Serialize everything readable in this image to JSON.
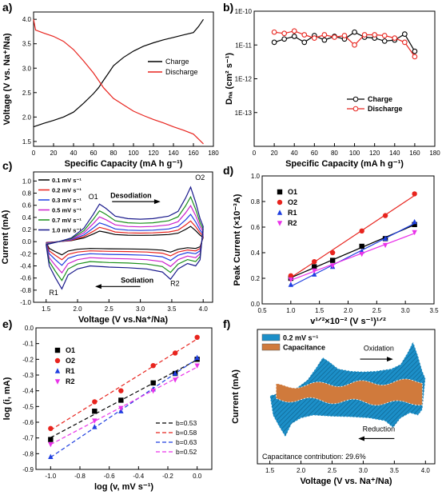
{
  "chart_data": [
    {
      "panel": "a)",
      "type": "line",
      "xlabel": "Specific Capacity (mA h g⁻¹)",
      "ylabel": "Voltage (V vs. Na⁺/Na)",
      "xlim": [
        0,
        180
      ],
      "ylim": [
        1.4,
        4.15
      ],
      "x_ticks": [
        "0",
        "20",
        "40",
        "60",
        "80",
        "100",
        "120",
        "140",
        "160",
        "180"
      ],
      "y_ticks": [
        "1.5",
        "2.0",
        "2.5",
        "3.0",
        "3.5",
        "4.0"
      ],
      "legend_position": "right",
      "series": [
        {
          "name": "Charge",
          "color": "#000000",
          "x": [
            0,
            10,
            20,
            30,
            40,
            50,
            60,
            65,
            70,
            75,
            80,
            90,
            100,
            110,
            120,
            130,
            140,
            150,
            160,
            165,
            170
          ],
          "y": [
            1.8,
            1.87,
            1.93,
            2.0,
            2.1,
            2.28,
            2.48,
            2.6,
            2.75,
            2.9,
            3.05,
            3.22,
            3.35,
            3.45,
            3.52,
            3.58,
            3.63,
            3.68,
            3.73,
            3.85,
            4.0
          ]
        },
        {
          "name": "Discharge",
          "color": "#e8241e",
          "x": [
            0,
            2,
            10,
            20,
            30,
            40,
            50,
            60,
            65,
            70,
            80,
            90,
            100,
            110,
            120,
            130,
            140,
            150,
            160,
            165,
            170
          ],
          "y": [
            4.0,
            3.78,
            3.72,
            3.65,
            3.55,
            3.38,
            3.15,
            2.9,
            2.75,
            2.6,
            2.38,
            2.25,
            2.12,
            2.03,
            1.95,
            1.88,
            1.8,
            1.73,
            1.65,
            1.55,
            1.45
          ]
        }
      ]
    },
    {
      "panel": "b)",
      "type": "line",
      "scale_y": "log",
      "xlabel": "Specific Capacity (mA h g⁻¹)",
      "ylabel": "Dₙₐ (cm² s⁻¹)",
      "xlim": [
        0,
        180
      ],
      "ylim": [
        1e-14,
        1e-10
      ],
      "x_ticks": [
        "0",
        "20",
        "40",
        "60",
        "80",
        "100",
        "120",
        "140",
        "160",
        "180"
      ],
      "y_ticks": [
        "1E-13",
        "1E-12",
        "1E-11",
        "1E-10"
      ],
      "legend_position": "lower-right",
      "series": [
        {
          "name": "Charge",
          "color": "#000000",
          "x": [
            20,
            30,
            40,
            50,
            60,
            70,
            80,
            90,
            100,
            110,
            120,
            130,
            140,
            150,
            160
          ],
          "y": [
            1.2e-11,
            1.5e-11,
            1.8e-11,
            1.2e-11,
            1.9e-11,
            1.4e-11,
            1.8e-11,
            1.5e-11,
            2.4e-11,
            1.7e-11,
            1.6e-11,
            1.3e-11,
            1.4e-11,
            2.1e-11,
            6.5e-12
          ]
        },
        {
          "name": "Discharge",
          "color": "#e8241e",
          "x": [
            20,
            30,
            40,
            50,
            60,
            70,
            80,
            90,
            100,
            110,
            120,
            130,
            140,
            150,
            160
          ],
          "y": [
            2.4e-11,
            2.2e-11,
            2.6e-11,
            2e-11,
            1.6e-11,
            2e-11,
            1.7e-11,
            1.9e-11,
            1e-11,
            2e-11,
            2e-11,
            1.9e-11,
            1.6e-11,
            1.2e-11,
            4.5e-12
          ]
        }
      ]
    },
    {
      "panel": "c)",
      "type": "line",
      "xlabel": "Voltage  (V vs.Na⁺/Na)",
      "ylabel": "Current (mA)",
      "xlim": [
        1.3,
        4.15
      ],
      "ylim": [
        -1.0,
        1.15
      ],
      "x_ticks": [
        "1.5",
        "2.0",
        "2.5",
        "3.0",
        "3.5",
        "4.0"
      ],
      "y_ticks": [
        "-1.0",
        "-0.8",
        "-0.6",
        "-0.4",
        "-0.2",
        "0.0",
        "0.2",
        "0.4",
        "0.6",
        "0.8",
        "1.0"
      ],
      "legend_position": "top-left",
      "series_names": [
        "0.1 mV s⁻¹",
        "0.2 mV s⁻¹",
        "0.3 mV s⁻¹",
        "0.5 mV s⁻¹",
        "0.7 mV s⁻¹",
        "1.0 mV s⁻¹"
      ],
      "series_colors": [
        "#000000",
        "#e8241e",
        "#1f3fe0",
        "#cc22cc",
        "#1a8f1a",
        "#1a1a8c"
      ],
      "scale_factors": [
        0.28,
        0.38,
        0.5,
        0.66,
        0.82,
        1.0
      ],
      "oxidation_peaks_mA": [
        0.2,
        0.26,
        0.33,
        0.42,
        0.52,
        0.62
      ],
      "annotations": [
        "O1",
        "O2",
        "R1",
        "R2",
        "Desodiation",
        "Sodiation"
      ]
    },
    {
      "panel": "d)",
      "type": "scatter",
      "xlabel": "v¹ᐟ²×10⁻² (V s⁻¹)¹ᐟ²",
      "ylabel": "Peak Current (×10⁻³A)",
      "xlim": [
        0.5,
        3.5
      ],
      "ylim": [
        0.0,
        1.0
      ],
      "x_ticks": [
        "0.5",
        "1.0",
        "1.5",
        "2.0",
        "2.5",
        "3.0",
        "3.5"
      ],
      "y_ticks": [
        "0.0",
        "0.2",
        "0.4",
        "0.6",
        "0.8",
        "1.0"
      ],
      "legend_position": "top-left",
      "x": [
        1.0,
        1.41,
        1.73,
        2.24,
        2.65,
        3.16
      ],
      "series": [
        {
          "name": "O1",
          "color": "#000000",
          "marker": "square",
          "values": [
            0.2,
            0.29,
            0.34,
            0.45,
            0.51,
            0.62
          ]
        },
        {
          "name": "O2",
          "color": "#e8241e",
          "marker": "circle",
          "values": [
            0.22,
            0.33,
            0.4,
            0.57,
            0.69,
            0.86
          ]
        },
        {
          "name": "R1",
          "color": "#1f3fe0",
          "marker": "triangle",
          "values": [
            0.15,
            0.23,
            0.29,
            0.41,
            0.51,
            0.64
          ]
        },
        {
          "name": "R2",
          "color": "#e933e9",
          "marker": "triangle-down",
          "values": [
            0.19,
            0.26,
            0.3,
            0.39,
            0.46,
            0.56
          ]
        }
      ]
    },
    {
      "panel": "e)",
      "type": "scatter",
      "xlabel": "log (v, mV s⁻¹)",
      "ylabel": "log (i, mA)",
      "xlim": [
        -1.1,
        0.1
      ],
      "ylim": [
        -0.9,
        0.0
      ],
      "x_ticks": [
        "-1.0",
        "-0.8",
        "-0.6",
        "-0.4",
        "-0.2",
        "0.0"
      ],
      "y_ticks": [
        "-0.9",
        "-0.8",
        "-0.7",
        "-0.6",
        "-0.5",
        "-0.4",
        "-0.3",
        "-0.2",
        "-0.1",
        "0.0"
      ],
      "legend_position": "top-left",
      "fit_legend_position": "lower-right",
      "x": [
        -1.0,
        -0.7,
        -0.52,
        -0.3,
        -0.15,
        0.0
      ],
      "series": [
        {
          "name": "O1",
          "color": "#000000",
          "marker": "square",
          "values": [
            -0.71,
            -0.53,
            -0.46,
            -0.35,
            -0.29,
            -0.2
          ],
          "fit": "b=0.53"
        },
        {
          "name": "O2",
          "color": "#e8241e",
          "marker": "circle",
          "values": [
            -0.64,
            -0.47,
            -0.4,
            -0.24,
            -0.16,
            -0.06
          ],
          "fit": "b=0.58"
        },
        {
          "name": "R1",
          "color": "#1f3fe0",
          "marker": "triangle",
          "values": [
            -0.82,
            -0.63,
            -0.53,
            -0.39,
            -0.29,
            -0.19
          ],
          "fit": "b=0.63"
        },
        {
          "name": "R2",
          "color": "#e933e9",
          "marker": "triangle-down",
          "values": [
            -0.74,
            -0.59,
            -0.51,
            -0.4,
            -0.33,
            -0.24
          ],
          "fit": "b=0.52"
        }
      ]
    },
    {
      "panel": "f)",
      "type": "area",
      "xlabel": "Voltage (V vs. Na⁺/Na)",
      "ylabel": "Current (mA)",
      "xlim": [
        1.3,
        4.15
      ],
      "x_ticks": [
        "1.5",
        "2.0",
        "2.5",
        "3.0",
        "3.5",
        "4.0"
      ],
      "legend_position": "top-left",
      "series": [
        {
          "name": "0.2 mV s⁻¹",
          "color": "#1c8fc8"
        },
        {
          "name": "Capacitance",
          "color": "#d07a3c"
        }
      ],
      "annotations": [
        "Oxidation",
        "Reduction",
        "Capacitance contribution:  29.6%"
      ]
    }
  ]
}
